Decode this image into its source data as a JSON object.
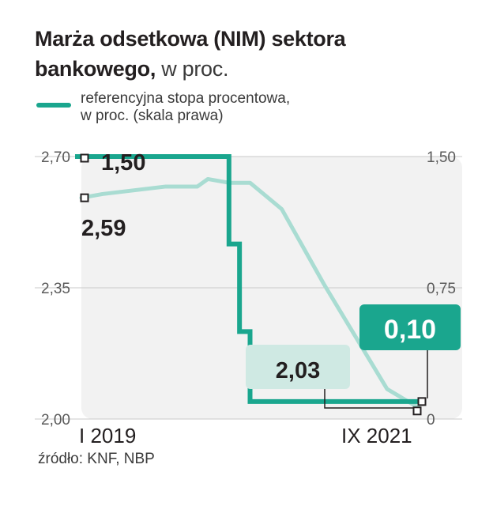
{
  "title": {
    "bold_part": "Marża odsetkowa (NIM) sektora bankowego,",
    "light_part": "w proc."
  },
  "legend": {
    "line1": "referencyjna stopa procentowa,",
    "line2": "w proc. (skala prawa)"
  },
  "source": "źródło: KNF, NBP",
  "colors": {
    "reference_rate": "#1aa68e",
    "nim": "#a9dcd2",
    "plot_bg": "#f2f2f2",
    "label_box_light": "#cfe9e3",
    "label_box_dark": "#1aa68e"
  },
  "chart_data": {
    "type": "line",
    "x_range": [
      "2019-01",
      "2021-09"
    ],
    "x_ticks": [
      "I 2019",
      "IX 2021"
    ],
    "left_axis": {
      "ticks": [
        "2,70",
        "2,35",
        "2,00"
      ],
      "ylim": [
        2.0,
        2.7
      ]
    },
    "right_axis": {
      "ticks": [
        "1,50",
        "0,75",
        "0"
      ],
      "ylim": [
        0,
        1.5
      ]
    },
    "grid": "horizontal",
    "series": [
      {
        "name": "referencyjna stopa procentowa, w proc.",
        "axis": "right",
        "step": true,
        "x": [
          "2019-01",
          "2020-02",
          "2020-03",
          "2020-04",
          "2020-05",
          "2021-09"
        ],
        "y": [
          1.5,
          1.5,
          1.0,
          0.5,
          0.1,
          0.1
        ]
      },
      {
        "name": "Marża odsetkowa (NIM) sektora bankowego, w proc.",
        "axis": "left",
        "x": [
          "2019-01",
          "2019-03",
          "2019-06",
          "2019-09",
          "2019-12",
          "2020-01",
          "2020-03",
          "2020-05",
          "2020-08",
          "2020-12",
          "2021-03",
          "2021-06",
          "2021-09"
        ],
        "y": [
          2.59,
          2.6,
          2.61,
          2.62,
          2.62,
          2.64,
          2.63,
          2.63,
          2.56,
          2.36,
          2.22,
          2.08,
          2.03
        ]
      }
    ],
    "annotations": {
      "ref_start": "1,50",
      "ref_end": "0,10",
      "nim_start": "2,59",
      "nim_end": "2,03"
    }
  }
}
